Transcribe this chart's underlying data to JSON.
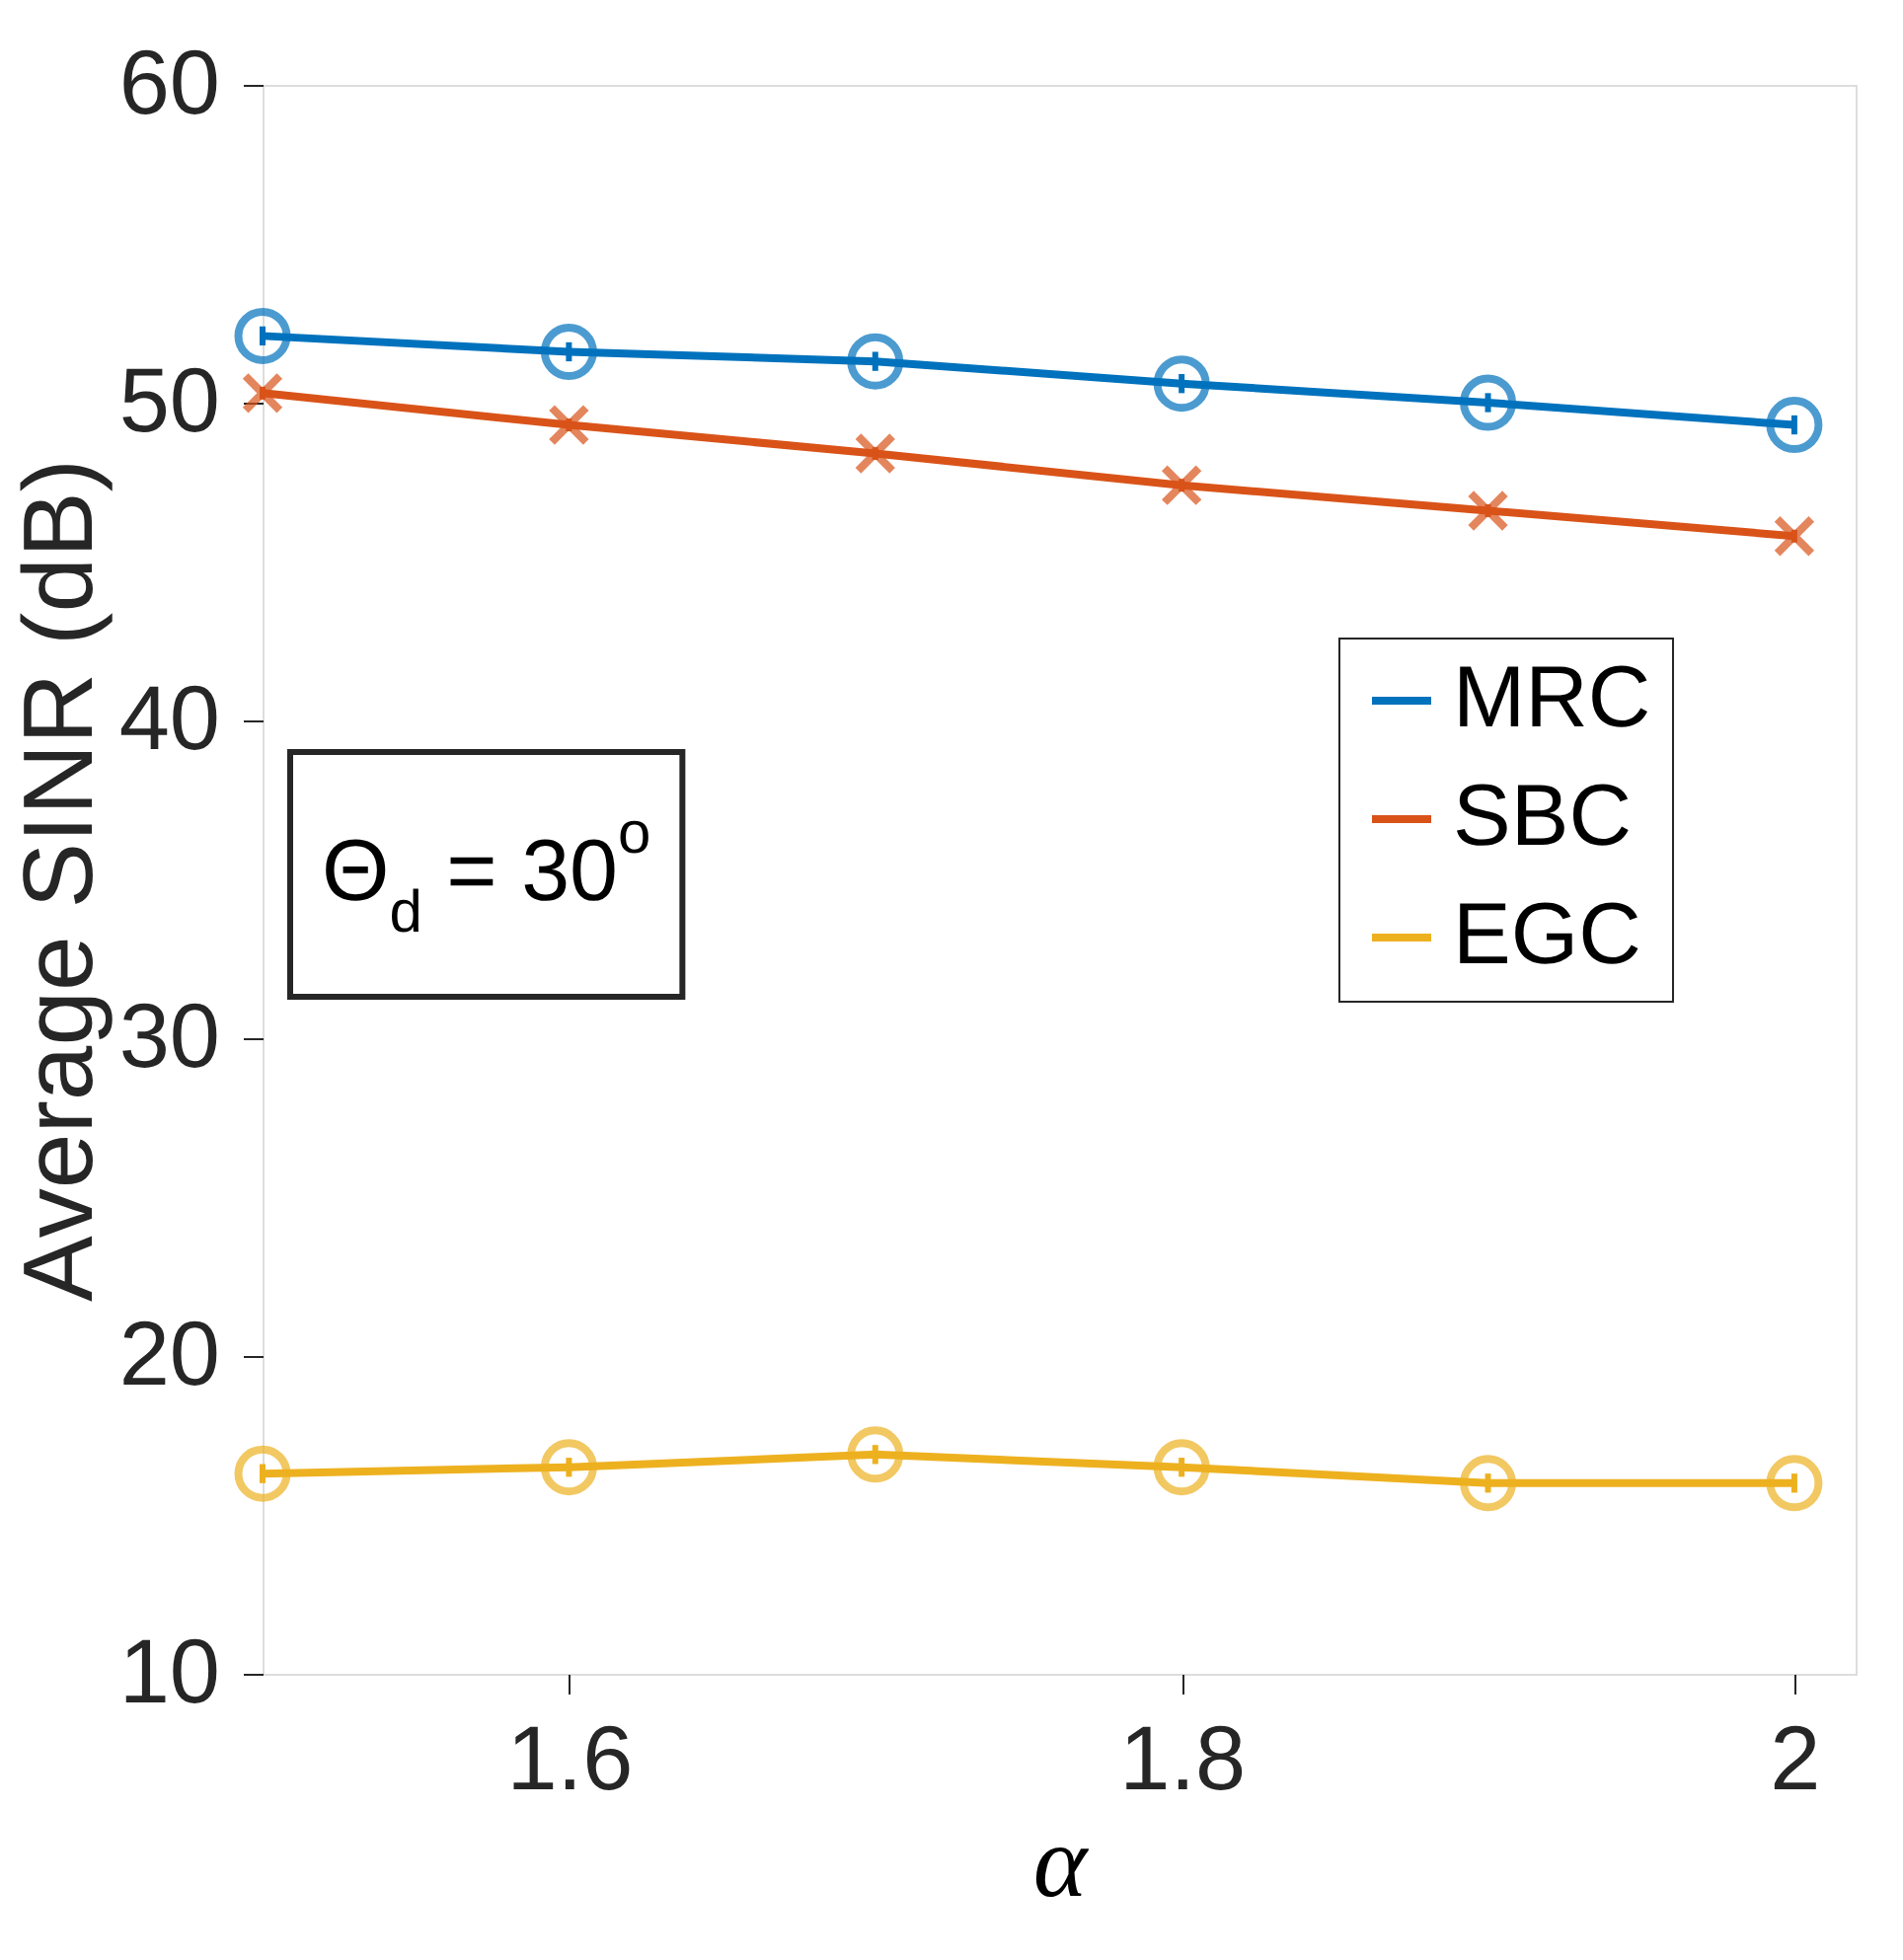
{
  "chart_data": {
    "type": "line",
    "xlabel": "α",
    "ylabel": "Average SINR (dB)",
    "x": [
      1.5,
      1.6,
      1.7,
      1.8,
      1.9,
      2.0
    ],
    "series": [
      {
        "name": "MRC",
        "color": "#0072bd",
        "marker": "circle",
        "values": [
          52.1,
          51.6,
          51.3,
          50.6,
          50.0,
          49.3
        ],
        "errors": [
          0.3,
          0.3,
          0.3,
          0.3,
          0.3,
          0.3
        ]
      },
      {
        "name": "SBC",
        "color": "#d95319",
        "marker": "cross",
        "values": [
          50.3,
          49.3,
          48.4,
          47.4,
          46.6,
          45.8
        ],
        "errors": [
          0.2,
          0.2,
          0.2,
          0.2,
          0.2,
          0.2
        ]
      },
      {
        "name": "EGC",
        "color": "#edb120",
        "marker": "circle",
        "values": [
          16.3,
          16.5,
          16.9,
          16.5,
          16.0,
          16.0
        ],
        "errors": [
          0.3,
          0.3,
          0.3,
          0.3,
          0.3,
          0.3
        ]
      }
    ],
    "xlim": [
      1.5,
      2.02
    ],
    "xticks": [
      1.6,
      1.8,
      2
    ],
    "ylim": [
      10,
      60
    ],
    "yticks": [
      10,
      20,
      30,
      40,
      50,
      60
    ],
    "grid": false,
    "legend": "right",
    "line_style": "solid",
    "annotations": [
      "Θ$_{d}$ = 30$^{o}$"
    ]
  }
}
